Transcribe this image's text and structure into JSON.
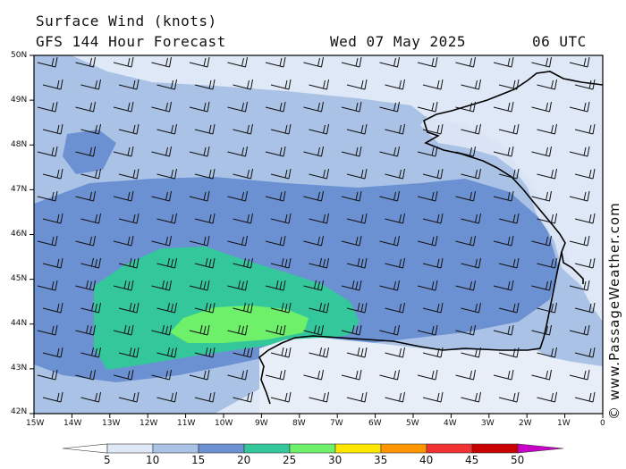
{
  "header": {
    "title": "Surface Wind (knots)",
    "model": "GFS 144 Hour Forecast",
    "date": "Wed 07 May 2025",
    "time": "06 UTC"
  },
  "credit": "© www.PassageWeather.com",
  "map": {
    "lat_labels": [
      "50N",
      "49N",
      "48N",
      "47N",
      "46N",
      "45N",
      "44N",
      "43N",
      "42N"
    ],
    "lon_labels": [
      "15W",
      "14W",
      "13W",
      "12W",
      "11W",
      "10W",
      "9W",
      "8W",
      "7W",
      "6W",
      "5W",
      "4W",
      "3W",
      "2W",
      "1W",
      "0"
    ],
    "wind_barbs": "northwesterly 10-25 kt",
    "colors": {
      "5": "#dfe8f6",
      "10": "#a9c2e6",
      "15": "#6c91d2",
      "20": "#34c79c",
      "25": "#6ef06a"
    }
  },
  "colorbar": {
    "labels": [
      "5",
      "10",
      "15",
      "20",
      "25",
      "30",
      "35",
      "40",
      "45",
      "50"
    ],
    "colors": [
      "#ffffff",
      "#dfe8f6",
      "#a9c2e6",
      "#6c91d2",
      "#34c79c",
      "#6ef06a",
      "#ffe600",
      "#ff9600",
      "#f03232",
      "#c80000",
      "#c800c8"
    ]
  }
}
